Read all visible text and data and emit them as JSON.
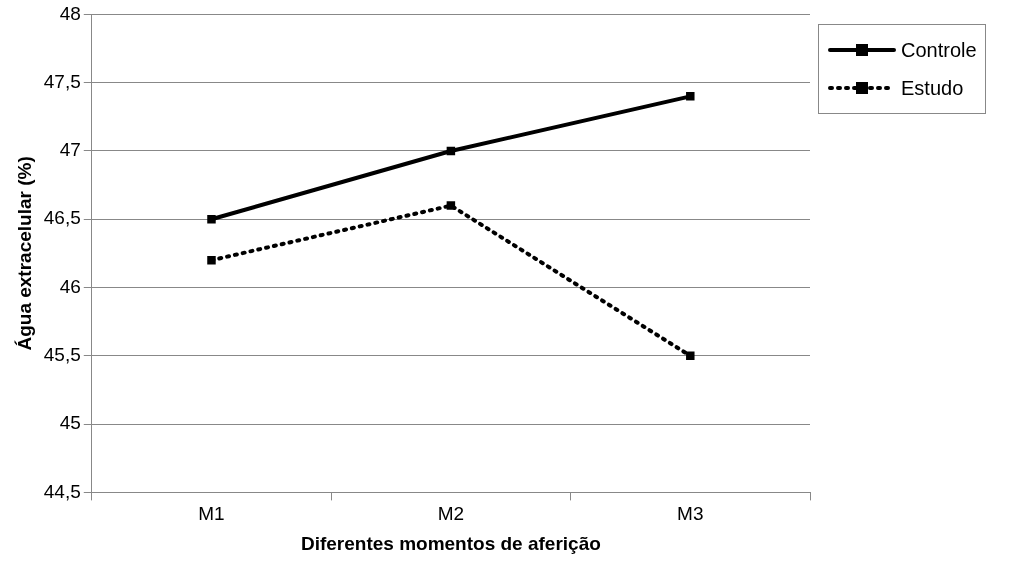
{
  "chart_data": {
    "type": "line",
    "xlabel": "Diferentes momentos de aferição",
    "ylabel": "Água extracelular (%)",
    "categories": [
      "M1",
      "M2",
      "M3"
    ],
    "series": [
      {
        "name": "Controle",
        "color": "#000000",
        "values": [
          46.5,
          47,
          47.4
        ],
        "line_style": "solid"
      },
      {
        "name": "Estudo",
        "color": "#000000",
        "values": [
          46.2,
          46.6,
          45.5
        ],
        "line_style": "dotted"
      }
    ],
    "ylim": [
      44.5,
      48
    ],
    "yticks": [
      {
        "value": 44.5,
        "label": "44,5"
      },
      {
        "value": 45,
        "label": "45"
      },
      {
        "value": 45.5,
        "label": "45,5"
      },
      {
        "value": 46,
        "label": "46"
      },
      {
        "value": 46.5,
        "label": "46,5"
      },
      {
        "value": 47,
        "label": "47"
      },
      {
        "value": 47.5,
        "label": "47,5"
      },
      {
        "value": 48,
        "label": "48"
      }
    ],
    "grid": "y",
    "legend": "top right",
    "marker": "square"
  }
}
